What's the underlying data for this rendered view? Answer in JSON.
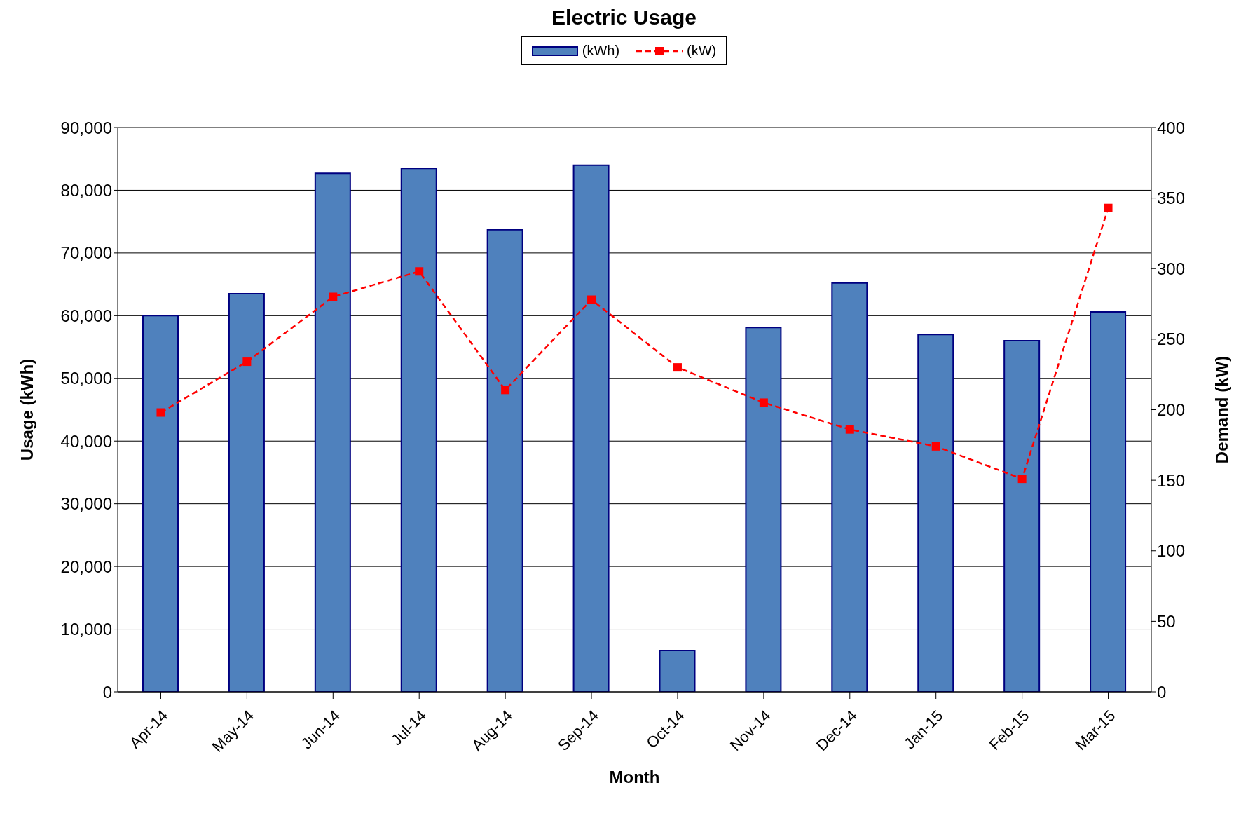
{
  "chart_data": {
    "type": "bar",
    "title": "Electric Usage",
    "xlabel": "Month",
    "ylabel": "Usage (kWh)",
    "y2label": "Demand (kW)",
    "categories": [
      "Apr-14",
      "May-14",
      "Jun-14",
      "Jul-14",
      "Aug-14",
      "Sep-14",
      "Oct-14",
      "Nov-14",
      "Dec-14",
      "Jan-15",
      "Feb-15",
      "Mar-15"
    ],
    "series": [
      {
        "name": "(kWh)",
        "color": "#4f81bd",
        "values": [
          60000,
          63500,
          82700,
          83500,
          73700,
          84000,
          6600,
          58100,
          65200,
          57000,
          56000,
          60600
        ]
      },
      {
        "name": "(kW)",
        "type": "line",
        "axis": "y2",
        "color": "#ff0000",
        "marker": "square",
        "line_style": "dashed",
        "values": [
          198,
          234,
          280,
          298,
          214,
          278,
          230,
          205,
          186,
          174,
          151,
          343
        ]
      }
    ],
    "ylim": [
      0,
      90000
    ],
    "yticks": [
      0,
      {
        "value": 10000,
        "label": "10,000"
      },
      {
        "value": 20000,
        "label": "20,000"
      },
      {
        "value": 30000,
        "label": "30,000"
      },
      {
        "value": 40000,
        "label": "40,000"
      },
      {
        "value": 50000,
        "label": "50,000"
      },
      {
        "value": 60000,
        "label": "60,000"
      },
      {
        "value": 70000,
        "label": "70,000"
      },
      {
        "value": 80000,
        "label": "80,000"
      },
      {
        "value": 90000,
        "label": "90,000"
      }
    ],
    "y2lim": [
      0,
      400
    ],
    "y2ticks": [
      0,
      50,
      100,
      150,
      200,
      250,
      300,
      350,
      400
    ],
    "grid": "y",
    "legend": "top"
  }
}
